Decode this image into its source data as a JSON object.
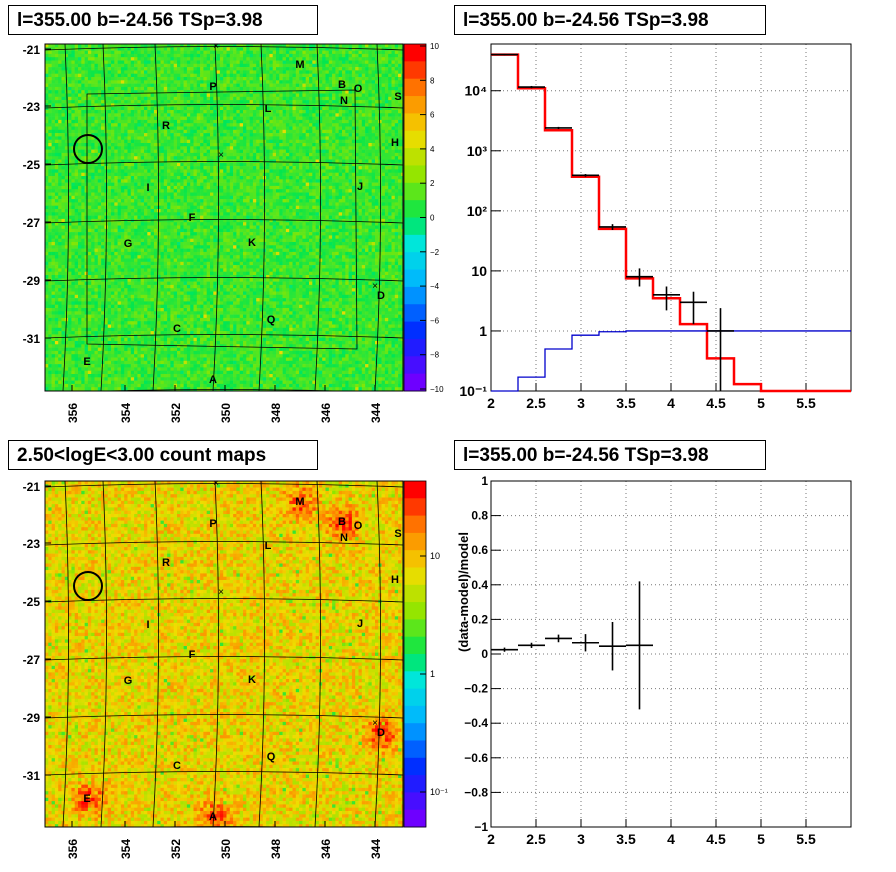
{
  "panels": {
    "tl_title": "l=355.00 b=-24.56 TSp=3.98",
    "tr_title": "l=355.00 b=-24.56 TSp=3.98",
    "bl_title": "2.50<logE<3.00 count maps",
    "br_title": "l=355.00 b=-24.56 TSp=3.98"
  },
  "colors": {
    "model": "#ff0000",
    "background": "#0000cc",
    "data": "#000000"
  },
  "chart_data": [
    {
      "type": "heatmap",
      "title": "l=355.00 b=-24.56 TSp=3.98",
      "x_ticks": [
        "356",
        "354",
        "352",
        "350",
        "348",
        "346",
        "344"
      ],
      "y_ticks": [
        "-21",
        "-23",
        "-25",
        "-27",
        "-29",
        "-31"
      ],
      "colorbar_ticks": [
        "10",
        "8",
        "6",
        "4",
        "2",
        "0",
        "−2",
        "−4",
        "−6",
        "−8",
        "−10"
      ],
      "zlim": [
        -10,
        10
      ],
      "source_labels": [
        "M",
        "B",
        "O",
        "P",
        "N",
        "S",
        "L",
        "R",
        "H",
        "I",
        "J",
        "F",
        "G",
        "K",
        "D",
        "Q",
        "C",
        "E",
        "A"
      ],
      "circle": "source position"
    },
    {
      "type": "line",
      "title": "l=355.00 b=-24.56 TSp=3.98",
      "log_y": true,
      "xlim": [
        2,
        6
      ],
      "ylim": [
        0.1,
        60000
      ],
      "x_ticks": [
        "2",
        "2.5",
        "3",
        "3.5",
        "4",
        "4.5",
        "5",
        "5.5"
      ],
      "y_ticks": [
        "10⁻¹",
        "1",
        "10",
        "10²",
        "10³",
        "10⁴"
      ],
      "series": [
        {
          "style": "step",
          "edges": [
            2,
            2.3,
            2.6,
            2.9,
            3.2,
            3.5,
            3.8,
            4.1,
            4.4,
            4.7,
            5,
            6
          ],
          "values": [
            40000,
            11000,
            2200,
            370,
            50,
            7.5,
            3.5,
            1.3,
            0.35,
            0.13,
            0.1
          ]
        },
        {
          "style": "step",
          "edges": [
            2,
            2.3,
            2.6,
            2.9,
            3.2,
            3.5,
            3.8,
            4.1,
            4.4,
            4.7,
            5,
            6
          ],
          "values": [
            0.08,
            0.17,
            0.5,
            0.85,
            0.97,
            1,
            1,
            1,
            1,
            1,
            1
          ]
        },
        {
          "style": "errorbars",
          "points": [
            {
              "x": 2.15,
              "y": 40000,
              "xerr": 0.15,
              "ylo": 39000,
              "yhi": 41000
            },
            {
              "x": 2.45,
              "y": 11500,
              "xerr": 0.15,
              "ylo": 11000,
              "yhi": 12000
            },
            {
              "x": 2.75,
              "y": 2400,
              "xerr": 0.15,
              "ylo": 2300,
              "yhi": 2500
            },
            {
              "x": 3.05,
              "y": 390,
              "xerr": 0.15,
              "ylo": 370,
              "yhi": 410
            },
            {
              "x": 3.35,
              "y": 54,
              "xerr": 0.15,
              "ylo": 48,
              "yhi": 60
            },
            {
              "x": 3.65,
              "y": 8,
              "xerr": 0.15,
              "ylo": 5.5,
              "yhi": 11
            },
            {
              "x": 3.95,
              "y": 4,
              "xerr": 0.15,
              "ylo": 2.2,
              "yhi": 5.5
            },
            {
              "x": 4.25,
              "y": 3,
              "xerr": 0.15,
              "ylo": 1.3,
              "yhi": 4.5
            },
            {
              "x": 4.55,
              "y": 1,
              "xerr": 0.15,
              "ylo": 0.1,
              "yhi": 2.4
            }
          ]
        }
      ]
    },
    {
      "type": "heatmap",
      "title": "2.50<logE<3.00 count maps",
      "x_ticks": [
        "356",
        "354",
        "352",
        "350",
        "348",
        "346",
        "344"
      ],
      "y_ticks": [
        "-21",
        "-23",
        "-25",
        "-27",
        "-29",
        "-31"
      ],
      "colorbar_ticks": [
        "10",
        "1",
        "10⁻¹"
      ],
      "zscale": "log",
      "source_labels": [
        "M",
        "B",
        "O",
        "P",
        "N",
        "S",
        "L",
        "R",
        "H",
        "I",
        "J",
        "F",
        "G",
        "K",
        "D",
        "Q",
        "C",
        "E",
        "A"
      ]
    },
    {
      "type": "scatter",
      "title": "l=355.00 b=-24.56 TSp=3.98",
      "ylabel": "(data-model)/model",
      "xlim": [
        2,
        6
      ],
      "ylim": [
        -1,
        1
      ],
      "x_ticks": [
        "2",
        "2.5",
        "3",
        "3.5",
        "4",
        "4.5",
        "5",
        "5.5"
      ],
      "y_ticks": [
        "−1",
        "−0.8",
        "−0.6",
        "−0.4",
        "−0.2",
        "0",
        "0.2",
        "0.4",
        "0.6",
        "0.8",
        "1"
      ],
      "points": [
        {
          "x": 2.15,
          "y": 0.025,
          "xerr": 0.15,
          "yerr": 0.012
        },
        {
          "x": 2.45,
          "y": 0.05,
          "xerr": 0.15,
          "yerr": 0.015
        },
        {
          "x": 2.75,
          "y": 0.09,
          "xerr": 0.15,
          "yerr": 0.022
        },
        {
          "x": 3.05,
          "y": 0.065,
          "xerr": 0.15,
          "yerr": 0.05
        },
        {
          "x": 3.35,
          "y": 0.045,
          "xerr": 0.15,
          "yerr": 0.14
        },
        {
          "x": 3.65,
          "y": 0.05,
          "xerr": 0.15,
          "yerr": 0.37
        }
      ]
    }
  ]
}
